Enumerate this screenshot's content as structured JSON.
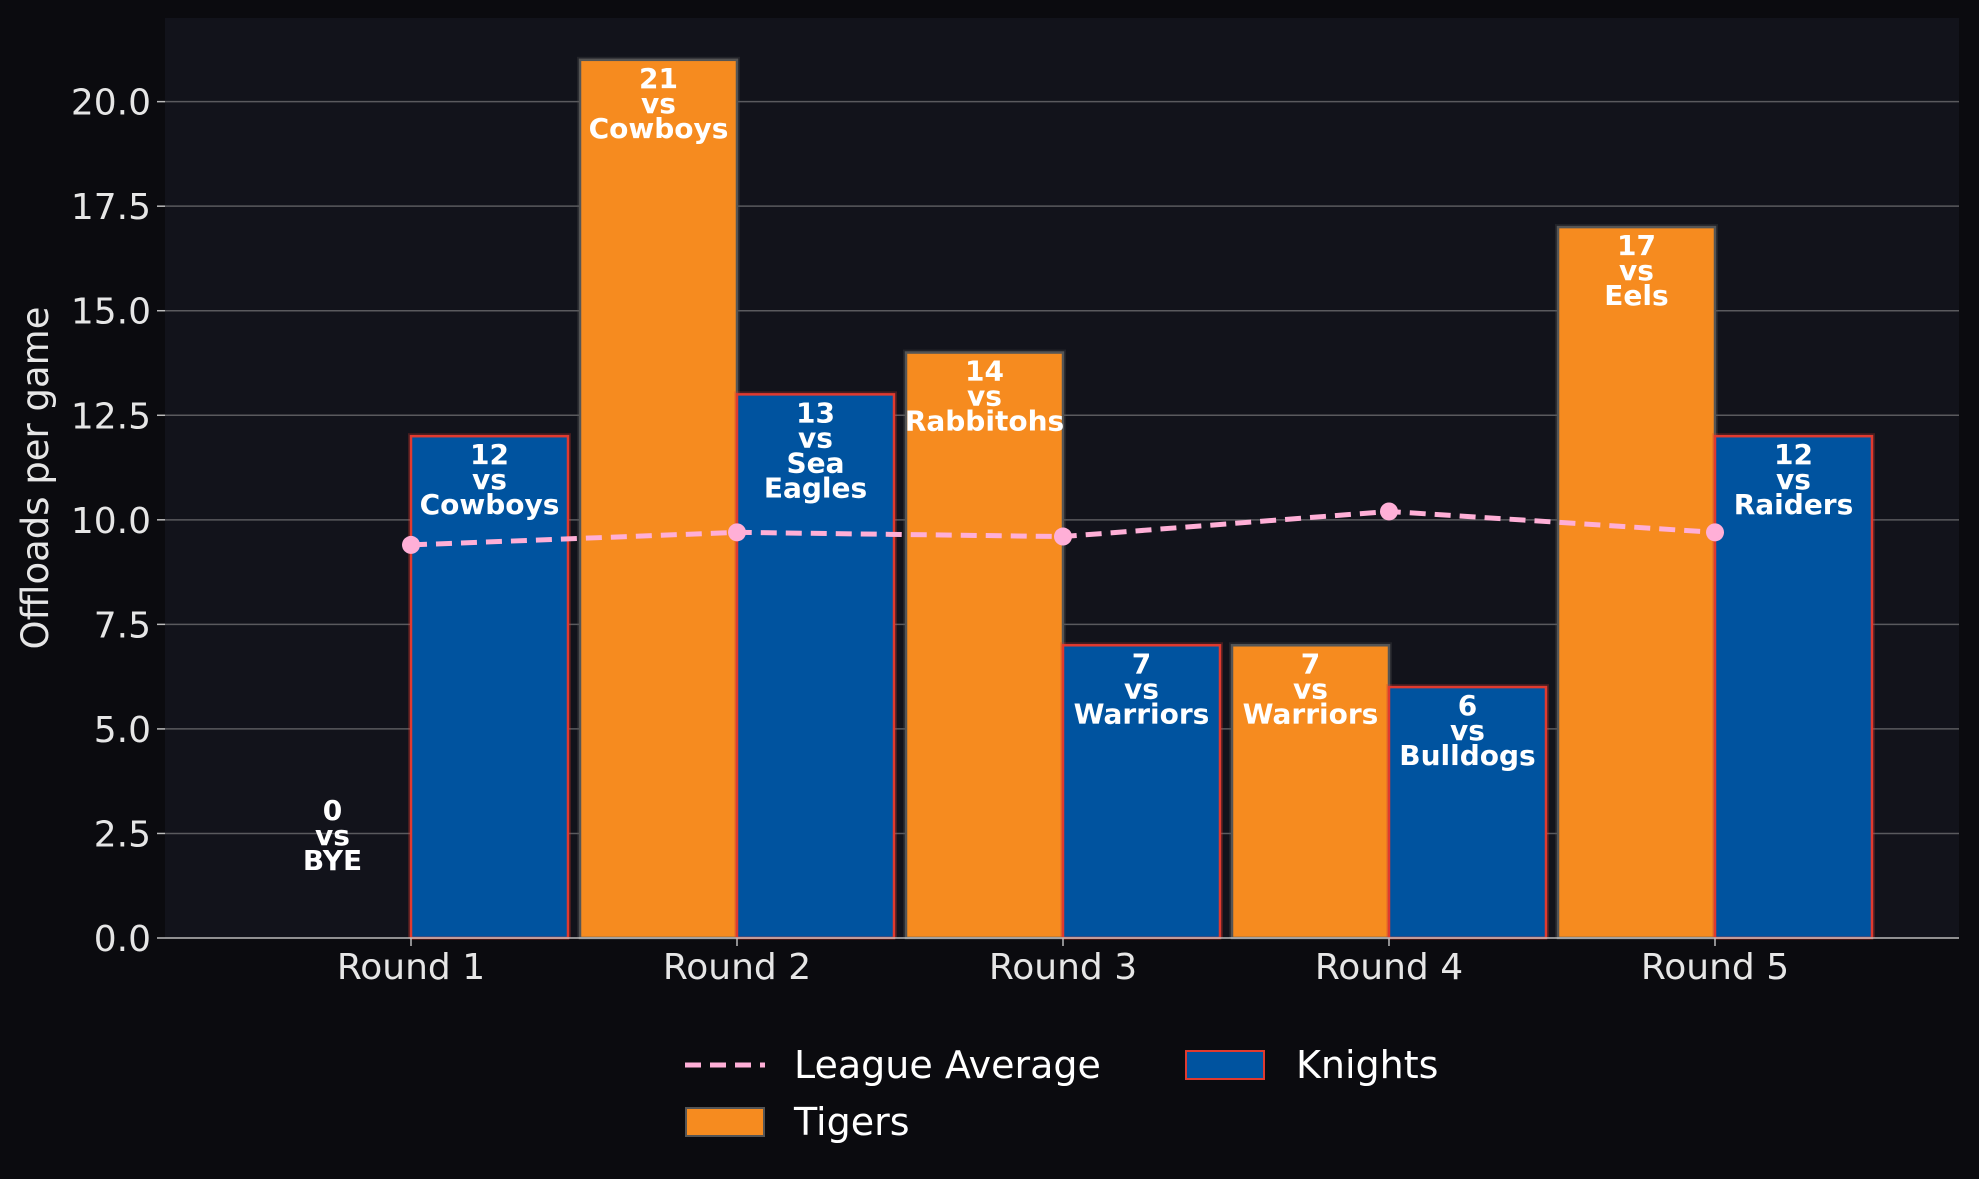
{
  "chart_data": {
    "type": "bar",
    "categories": [
      "Round 1",
      "Round 2",
      "Round 3",
      "Round 4",
      "Round 5"
    ],
    "ylabel": "Offloads per game",
    "xlabel": "",
    "ylim": [
      0,
      22
    ],
    "yticks": [
      "0.0",
      "2.5",
      "5.0",
      "7.5",
      "10.0",
      "12.5",
      "15.0",
      "17.5",
      "20.0"
    ],
    "grid": true,
    "legend_position": "bottom-center",
    "series": [
      {
        "name": "Tigers",
        "type": "bar",
        "color": "#f68b1f",
        "edge_color": "#555555",
        "values": [
          0,
          21,
          14,
          7,
          17
        ],
        "opponents": [
          "BYE",
          "Cowboys",
          "Rabbitohs",
          "Warriors",
          "Eels"
        ]
      },
      {
        "name": "Knights",
        "type": "bar",
        "color": "#00539f",
        "edge_color": "#e03a2f",
        "values": [
          12,
          13,
          7,
          6,
          12
        ],
        "opponents": [
          "Cowboys",
          "Sea Eagles",
          "Warriors",
          "Bulldogs",
          "Raiders"
        ]
      },
      {
        "name": "League Average",
        "type": "line",
        "style": "dashed",
        "color": "#ffafd7",
        "values": [
          9.4,
          9.7,
          9.6,
          10.2,
          9.7
        ]
      }
    ]
  }
}
